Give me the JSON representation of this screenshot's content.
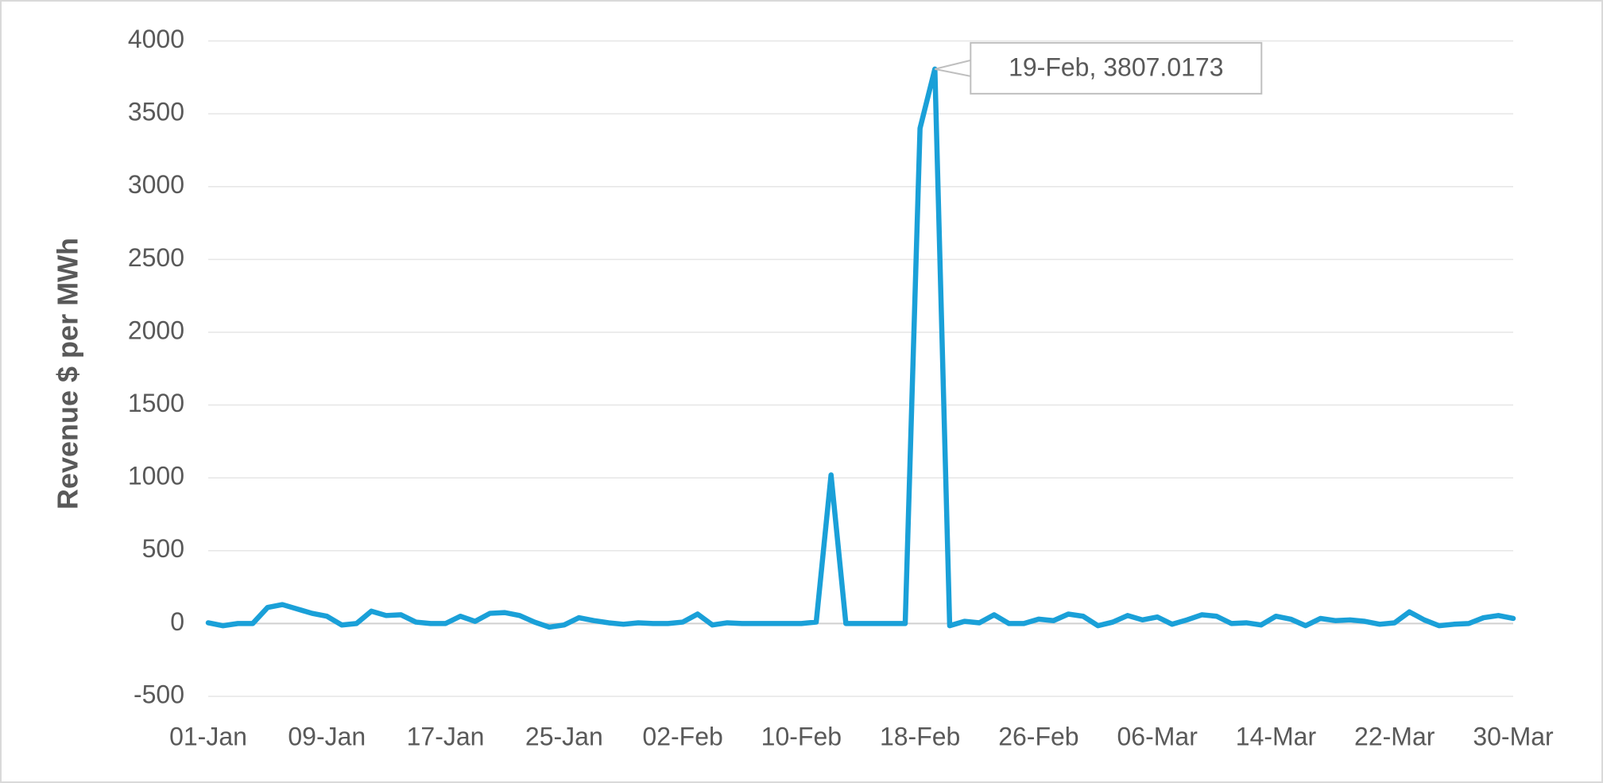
{
  "chart_data": {
    "type": "line",
    "y_label": "Revenue $ per MWh",
    "categories": [
      "01-Jan",
      null,
      null,
      null,
      null,
      null,
      null,
      null,
      "09-Jan",
      null,
      null,
      null,
      null,
      null,
      null,
      null,
      "17-Jan",
      null,
      null,
      null,
      null,
      null,
      null,
      null,
      "25-Jan",
      null,
      null,
      null,
      null,
      null,
      null,
      null,
      "02-Feb",
      null,
      null,
      null,
      null,
      null,
      null,
      null,
      "10-Feb",
      null,
      null,
      null,
      null,
      null,
      null,
      null,
      "18-Feb",
      null,
      null,
      null,
      null,
      null,
      null,
      null,
      "26-Feb",
      null,
      null,
      null,
      null,
      null,
      null,
      null,
      "06-Mar",
      null,
      null,
      null,
      null,
      null,
      null,
      null,
      "14-Mar",
      null,
      null,
      null,
      null,
      null,
      null,
      null,
      "22-Mar",
      null,
      null,
      null,
      null,
      null,
      null,
      null,
      "30-Mar"
    ],
    "series": [
      {
        "name": "Revenue",
        "color": "#1aa0d8",
        "values": [
          5,
          -15,
          0,
          0,
          110,
          130,
          100,
          70,
          50,
          -10,
          0,
          85,
          55,
          60,
          10,
          0,
          0,
          50,
          15,
          70,
          75,
          55,
          10,
          -25,
          -10,
          40,
          20,
          5,
          -5,
          5,
          0,
          0,
          10,
          65,
          -10,
          5,
          0,
          0,
          0,
          0,
          0,
          10,
          1020,
          0,
          0,
          0,
          0,
          0,
          3400,
          3807.0173,
          -15,
          15,
          5,
          60,
          0,
          0,
          30,
          20,
          65,
          50,
          -15,
          10,
          55,
          25,
          45,
          -5,
          25,
          60,
          50,
          0,
          5,
          -10,
          50,
          30,
          -15,
          35,
          20,
          25,
          15,
          -5,
          5,
          80,
          25,
          -15,
          -5,
          0,
          40,
          55,
          35
        ]
      }
    ],
    "annotations": [
      {
        "text": "19-Feb, 3807.0173",
        "index": 49
      }
    ],
    "ylim": [
      -500,
      4000
    ],
    "yticks": [
      -500,
      0,
      500,
      1000,
      1500,
      2000,
      2500,
      3000,
      3500,
      4000
    ],
    "grid": true
  }
}
